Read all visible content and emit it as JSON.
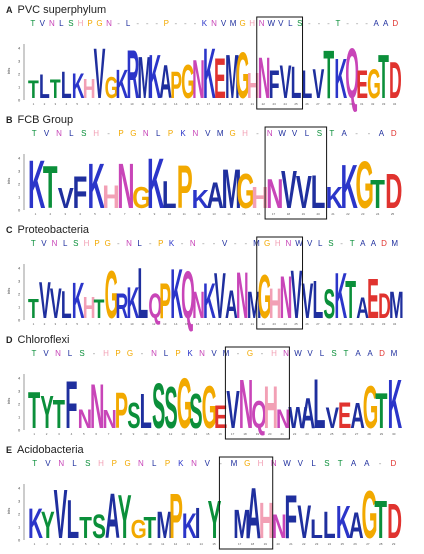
{
  "colors": {
    "G": "#f2a900",
    "P": "#f2a900",
    "S": "#0b8f3a",
    "T": "#0b8f3a",
    "Y": "#0b8f3a",
    "N": "#c845b8",
    "Q": "#c845b8",
    "K": "#2b35c9",
    "R": "#2b35c9",
    "H": "#f2a0b5",
    "D": "#e0332f",
    "E": "#e0332f",
    "A": "#1f2f9e",
    "V": "#1f2f9e",
    "L": "#1f2f9e",
    "I": "#1f2f9e",
    "M": "#1f2f9e",
    "F": "#1f2f9e",
    "W": "#1f2f9e",
    "C": "#1f2f9e",
    "-": "#999999"
  },
  "panels": [
    {
      "letter": "A",
      "title": "PVC superphylum",
      "consensus": "TVNLSHPGN-L---P---KNVMGHNWVLS---T---AAD",
      "logo": "TLTLKHVGKRMKAPGNKEMGHNFVLLVTKQEGTD",
      "box": [
        21,
        25
      ]
    },
    {
      "letter": "B",
      "title": "FCB Group",
      "consensus": "TVNLSH-PGNLPKNVMGH-NWVLSTA--AD",
      "logo": "KTVFKHNGKLPKAMGHNVVLKKGTD",
      "box": [
        16,
        20
      ]
    },
    {
      "letter": "C",
      "title": "Proteobacteria",
      "consensus": "TVNLSHPG-NL-PK-N--V--MGHNWVLS-TAADM",
      "logo": "TVVLKHTGRKLQPKQNKVANMGHNVVLSKTAEDM",
      "box": [
        21,
        25
      ]
    },
    {
      "letter": "D",
      "title": "Chloroflexi",
      "consensus": "TVNLS-HPG-NLPKNVM-G-HNWVLSTAADM",
      "logo": "TYTFNNNPSLSSGSGEVNQHNWALVEAGTK",
      "box": [
        16,
        21
      ]
    },
    {
      "letter": "E",
      "title": "Acidobacteria",
      "consensus": "TVNLSHPGNLPKNV-MGHNWVLSTAA-D",
      "logo": "KYVLTSAYGTMPKIY-MAHNFVLLKAGTD",
      "box": [
        15,
        19
      ]
    }
  ],
  "axis_label": "bits"
}
